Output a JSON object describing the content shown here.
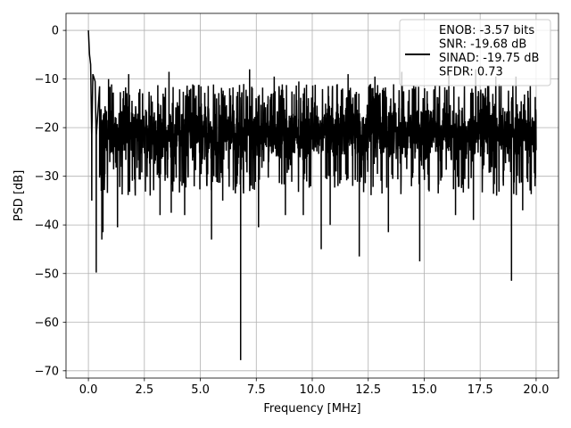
{
  "chart_data": {
    "type": "line",
    "title": "",
    "xlabel": "Frequency [MHz]",
    "ylabel": "PSD [dB]",
    "xlim": [
      -1.0,
      21.0
    ],
    "ylim": [
      -71.5,
      3.5
    ],
    "xticks": [
      0.0,
      2.5,
      5.0,
      7.5,
      10.0,
      12.5,
      15.0,
      17.5,
      20.0
    ],
    "xtick_labels": [
      "0.0",
      "2.5",
      "5.0",
      "7.5",
      "10.0",
      "12.5",
      "15.0",
      "17.5",
      "20.0"
    ],
    "yticks": [
      0,
      -10,
      -20,
      -30,
      -40,
      -50,
      -60,
      -70
    ],
    "ytick_labels": [
      "0",
      "−10",
      "−20",
      "−30",
      "−40",
      "−50",
      "−60",
      "−70"
    ],
    "grid": true,
    "legend_position": "top-right",
    "series": [
      {
        "label_lines": [
          "ENOB: -3.57 bits",
          "SNR: -19.68 dB",
          "SINAD: -19.75 dB",
          "SFDR: 0.73"
        ],
        "color": "#000000",
        "x_range": [
          0.0,
          20.0
        ],
        "noise_band": {
          "mean": -21.5,
          "upper_typical": -14,
          "lower_typical": -28
        },
        "start_values": [
          [
            0.0,
            0.0
          ],
          [
            0.02,
            -2.0
          ],
          [
            0.05,
            -5.0
          ],
          [
            0.1,
            -7.0
          ],
          [
            0.2,
            -9.0
          ],
          [
            0.3,
            -10.5
          ],
          [
            0.5,
            -11.5
          ]
        ],
        "downward_spikes": [
          [
            0.15,
            -35
          ],
          [
            0.35,
            -49.8
          ],
          [
            0.6,
            -43
          ],
          [
            0.65,
            -41.5
          ],
          [
            1.3,
            -40.5
          ],
          [
            3.2,
            -38
          ],
          [
            3.7,
            -37.5
          ],
          [
            4.3,
            -38
          ],
          [
            5.5,
            -43
          ],
          [
            6.0,
            -35
          ],
          [
            6.8,
            -67.8
          ],
          [
            7.6,
            -40.5
          ],
          [
            8.8,
            -38
          ],
          [
            9.6,
            -38
          ],
          [
            10.4,
            -45
          ],
          [
            10.8,
            -40
          ],
          [
            12.1,
            -46.5
          ],
          [
            13.4,
            -41.5
          ],
          [
            14.8,
            -47.5
          ],
          [
            16.4,
            -38
          ],
          [
            17.2,
            -39
          ],
          [
            18.9,
            -51.5
          ],
          [
            19.4,
            -37
          ]
        ],
        "upward_spikes": [
          [
            0.9,
            -10
          ],
          [
            1.8,
            -9
          ],
          [
            3.6,
            -8.5
          ],
          [
            7.2,
            -8
          ],
          [
            8.3,
            -9.5
          ],
          [
            9.4,
            -10.5
          ],
          [
            11.6,
            -9
          ],
          [
            12.8,
            -9.5
          ],
          [
            14.0,
            -8.5
          ],
          [
            16.1,
            -9
          ],
          [
            17.3,
            -8
          ],
          [
            18.2,
            -9.5
          ],
          [
            19.1,
            -9.5
          ]
        ]
      }
    ]
  }
}
